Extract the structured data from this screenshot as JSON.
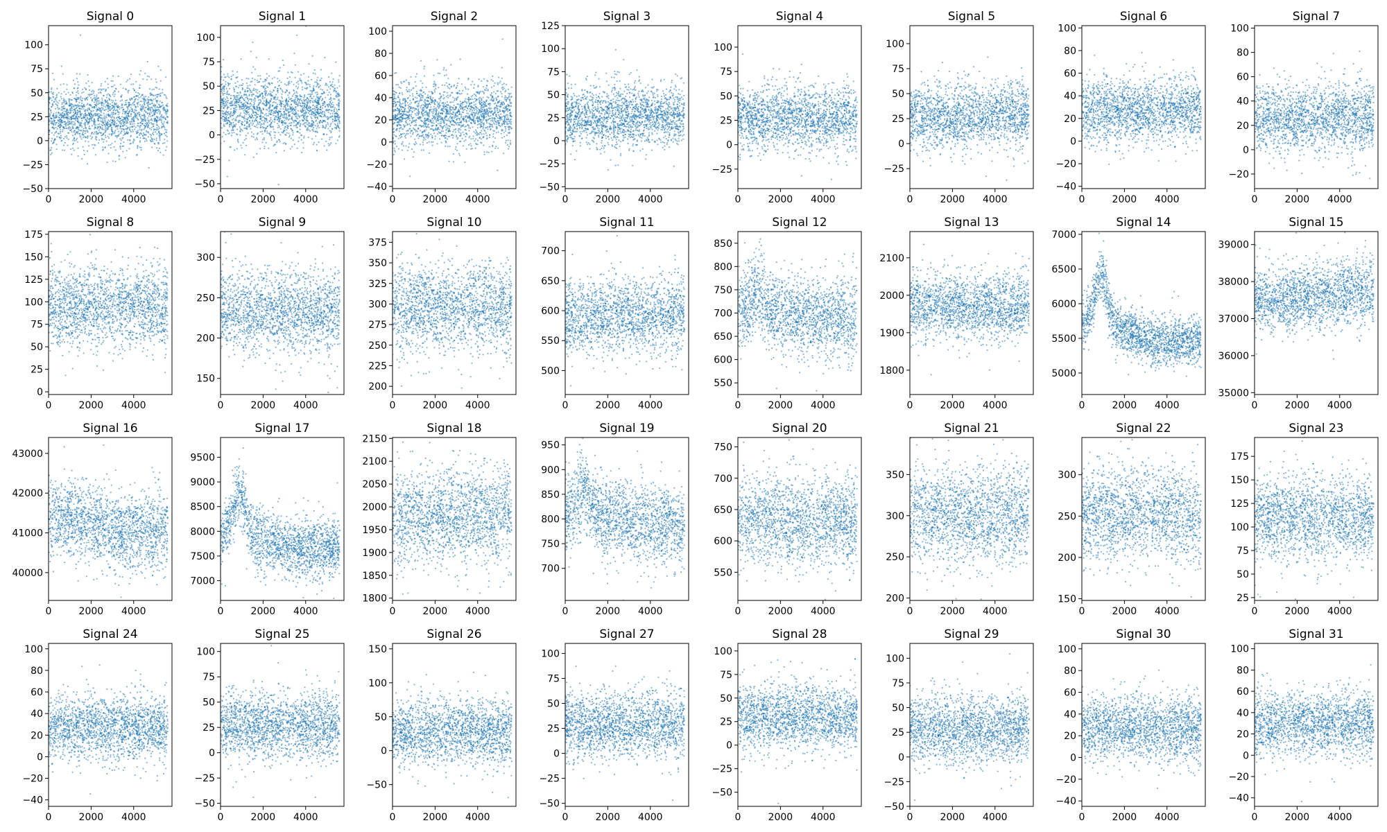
{
  "figure": {
    "point_color": "#1f77b4",
    "n_rows": 4,
    "n_cols": 8
  },
  "chart_data": [
    {
      "type": "scatter",
      "title": "Signal 0",
      "xlim": [
        0,
        5800
      ],
      "ylim": [
        -50,
        120
      ],
      "x_ticks": [
        0,
        2000,
        4000
      ],
      "y_ticks": [
        -50,
        -25,
        0,
        25,
        50,
        75,
        100
      ],
      "profile": {
        "base": 25,
        "spread": 16,
        "drift": 0,
        "peak_x": 0,
        "peak_height": 0,
        "peak_width": 1,
        "decay_depth": 0,
        "rebound": 0,
        "wave": 0
      }
    },
    {
      "type": "scatter",
      "title": "Signal 1",
      "xlim": [
        0,
        5800
      ],
      "ylim": [
        -55,
        112
      ],
      "x_ticks": [
        0,
        2000,
        4000
      ],
      "y_ticks": [
        -50,
        -25,
        0,
        25,
        50,
        75,
        100
      ],
      "profile": {
        "base": 27,
        "spread": 16,
        "drift": 0,
        "peak_x": 0,
        "peak_height": 0,
        "peak_width": 1,
        "decay_depth": 0,
        "rebound": 0,
        "wave": 0
      }
    },
    {
      "type": "scatter",
      "title": "Signal 2",
      "xlim": [
        0,
        5800
      ],
      "ylim": [
        -42,
        105
      ],
      "x_ticks": [
        0,
        2000,
        4000
      ],
      "y_ticks": [
        -40,
        -20,
        0,
        20,
        40,
        60,
        80,
        100
      ],
      "profile": {
        "base": 25,
        "spread": 14,
        "drift": 0,
        "peak_x": 0,
        "peak_height": 0,
        "peak_width": 1,
        "decay_depth": 0,
        "rebound": 0,
        "wave": 0
      }
    },
    {
      "type": "scatter",
      "title": "Signal 3",
      "xlim": [
        0,
        5800
      ],
      "ylim": [
        -52,
        125
      ],
      "x_ticks": [
        0,
        2000,
        4000
      ],
      "y_ticks": [
        -50,
        -25,
        0,
        25,
        50,
        75,
        100,
        125
      ],
      "profile": {
        "base": 27,
        "spread": 16,
        "drift": 0,
        "peak_x": 0,
        "peak_height": 0,
        "peak_width": 1,
        "decay_depth": 0,
        "rebound": 0,
        "wave": 0
      }
    },
    {
      "type": "scatter",
      "title": "Signal 4",
      "xlim": [
        0,
        5800
      ],
      "ylim": [
        -45,
        122
      ],
      "x_ticks": [
        0,
        2000,
        4000
      ],
      "y_ticks": [
        -25,
        0,
        25,
        50,
        75,
        100
      ],
      "profile": {
        "base": 27,
        "spread": 16,
        "drift": 0,
        "peak_x": 0,
        "peak_height": 0,
        "peak_width": 1,
        "decay_depth": 0,
        "rebound": 0,
        "wave": 0
      }
    },
    {
      "type": "scatter",
      "title": "Signal 5",
      "xlim": [
        0,
        5800
      ],
      "ylim": [
        -45,
        118
      ],
      "x_ticks": [
        0,
        2000,
        4000
      ],
      "y_ticks": [
        -25,
        0,
        25,
        50,
        75,
        100
      ],
      "profile": {
        "base": 27,
        "spread": 16,
        "drift": 0,
        "peak_x": 0,
        "peak_height": 0,
        "peak_width": 1,
        "decay_depth": 0,
        "rebound": 0,
        "wave": 0
      }
    },
    {
      "type": "scatter",
      "title": "Signal 6",
      "xlim": [
        0,
        5800
      ],
      "ylim": [
        -42,
        102
      ],
      "x_ticks": [
        0,
        2000,
        4000
      ],
      "y_ticks": [
        -40,
        -20,
        0,
        20,
        40,
        60,
        80,
        100
      ],
      "profile": {
        "base": 27,
        "spread": 14,
        "drift": 0,
        "peak_x": 0,
        "peak_height": 0,
        "peak_width": 1,
        "decay_depth": 0,
        "rebound": 0,
        "wave": 0
      }
    },
    {
      "type": "scatter",
      "title": "Signal 7",
      "xlim": [
        0,
        5800
      ],
      "ylim": [
        -32,
        102
      ],
      "x_ticks": [
        0,
        2000,
        4000
      ],
      "y_ticks": [
        -20,
        0,
        20,
        40,
        60,
        80,
        100
      ],
      "profile": {
        "base": 27,
        "spread": 14,
        "drift": 0,
        "peak_x": 0,
        "peak_height": 0,
        "peak_width": 1,
        "decay_depth": 0,
        "rebound": 0,
        "wave": 0
      }
    },
    {
      "type": "scatter",
      "title": "Signal 8",
      "xlim": [
        0,
        5800
      ],
      "ylim": [
        -3,
        178
      ],
      "x_ticks": [
        0,
        2000,
        4000
      ],
      "y_ticks": [
        0,
        25,
        50,
        75,
        100,
        125,
        150,
        175
      ],
      "profile": {
        "base": 94,
        "spread": 22,
        "drift": 0,
        "peak_x": 0,
        "peak_height": 0,
        "peak_width": 1,
        "decay_depth": 0,
        "rebound": 0,
        "wave": 0
      }
    },
    {
      "type": "scatter",
      "title": "Signal 9",
      "xlim": [
        0,
        5800
      ],
      "ylim": [
        130,
        332
      ],
      "x_ticks": [
        0,
        2000,
        4000
      ],
      "y_ticks": [
        150,
        200,
        250,
        300
      ],
      "profile": {
        "base": 232,
        "spread": 25,
        "drift": 0,
        "peak_x": 0,
        "peak_height": 0,
        "peak_width": 1,
        "decay_depth": 0,
        "rebound": 0,
        "wave": 0
      }
    },
    {
      "type": "scatter",
      "title": "Signal 10",
      "xlim": [
        0,
        5800
      ],
      "ylim": [
        190,
        388
      ],
      "x_ticks": [
        0,
        2000,
        4000
      ],
      "y_ticks": [
        200,
        225,
        250,
        275,
        300,
        325,
        350,
        375
      ],
      "profile": {
        "base": 295,
        "spread": 25,
        "drift": 0,
        "peak_x": 0,
        "peak_height": 0,
        "peak_width": 1,
        "decay_depth": 0,
        "rebound": 0,
        "wave": 0
      }
    },
    {
      "type": "scatter",
      "title": "Signal 11",
      "xlim": [
        0,
        5800
      ],
      "ylim": [
        460,
        732
      ],
      "x_ticks": [
        0,
        2000,
        4000
      ],
      "y_ticks": [
        500,
        550,
        600,
        650,
        700
      ],
      "profile": {
        "base": 588,
        "spread": 30,
        "drift": 8,
        "peak_x": 0,
        "peak_height": 0,
        "peak_width": 1,
        "decay_depth": 0,
        "rebound": 0,
        "wave": 0
      }
    },
    {
      "type": "scatter",
      "title": "Signal 12",
      "xlim": [
        0,
        5800
      ],
      "ylim": [
        525,
        875
      ],
      "x_ticks": [
        0,
        2000,
        4000
      ],
      "y_ticks": [
        550,
        600,
        650,
        700,
        750,
        800,
        850
      ],
      "profile": {
        "base": 705,
        "spread": 42,
        "drift": 0,
        "peak_x": 900,
        "peak_height": 40,
        "peak_width": 400,
        "decay_depth": 15,
        "rebound": 0,
        "wave": 0
      }
    },
    {
      "type": "scatter",
      "title": "Signal 13",
      "xlim": [
        0,
        5800
      ],
      "ylim": [
        1735,
        2170
      ],
      "x_ticks": [
        0,
        2000,
        4000
      ],
      "y_ticks": [
        1800,
        1900,
        2000,
        2100
      ],
      "profile": {
        "base": 1972,
        "spread": 42,
        "drift": 25,
        "peak_x": 900,
        "peak_height": 0,
        "peak_width": 1,
        "decay_depth": 25,
        "rebound": 0,
        "wave": 0
      }
    },
    {
      "type": "scatter",
      "title": "Signal 14",
      "xlim": [
        0,
        5800
      ],
      "ylim": [
        4690,
        7040
      ],
      "x_ticks": [
        0,
        2000,
        4000
      ],
      "y_ticks": [
        5000,
        5500,
        6000,
        6500,
        7000
      ],
      "profile": {
        "base": 5740,
        "spread": 170,
        "drift": 0,
        "peak_x": 900,
        "peak_height": 700,
        "peak_width": 380,
        "decay_depth": 300,
        "rebound": 60,
        "wave": 0
      }
    },
    {
      "type": "scatter",
      "title": "Signal 15",
      "xlim": [
        0,
        5800
      ],
      "ylim": [
        34950,
        39350
      ],
      "x_ticks": [
        0,
        2000,
        4000
      ],
      "y_ticks": [
        35000,
        36000,
        37000,
        38000,
        39000
      ],
      "profile": {
        "base": 37470,
        "spread": 420,
        "drift": 300,
        "peak_x": 0,
        "peak_height": 0,
        "peak_width": 1,
        "decay_depth": 0,
        "rebound": 0,
        "wave": 0
      }
    },
    {
      "type": "scatter",
      "title": "Signal 16",
      "xlim": [
        0,
        5800
      ],
      "ylim": [
        39300,
        43400
      ],
      "x_ticks": [
        0,
        2000,
        4000
      ],
      "y_ticks": [
        40000,
        41000,
        42000,
        43000
      ],
      "profile": {
        "base": 41350,
        "spread": 480,
        "drift": 250,
        "peak_x": 900,
        "peak_height": 0,
        "peak_width": 1,
        "decay_depth": 500,
        "rebound": 0,
        "wave": 0
      }
    },
    {
      "type": "scatter",
      "title": "Signal 17",
      "xlim": [
        0,
        5800
      ],
      "ylim": [
        6600,
        9900
      ],
      "x_ticks": [
        0,
        2000,
        4000
      ],
      "y_ticks": [
        7000,
        7500,
        8000,
        8500,
        9000,
        9500
      ],
      "profile": {
        "base": 7950,
        "spread": 300,
        "drift": 0,
        "peak_x": 900,
        "peak_height": 800,
        "peak_width": 380,
        "decay_depth": 300,
        "rebound": 60,
        "wave": 0
      }
    },
    {
      "type": "scatter",
      "title": "Signal 18",
      "xlim": [
        0,
        5800
      ],
      "ylim": [
        1795,
        2152
      ],
      "x_ticks": [
        0,
        2000,
        4000
      ],
      "y_ticks": [
        1800,
        1850,
        1900,
        1950,
        2000,
        2050,
        2100,
        2150
      ],
      "profile": {
        "base": 1975,
        "spread": 50,
        "drift": 15,
        "peak_x": 0,
        "peak_height": 0,
        "peak_width": 1,
        "decay_depth": 0,
        "rebound": 0,
        "wave": 0
      }
    },
    {
      "type": "scatter",
      "title": "Signal 19",
      "xlim": [
        0,
        5800
      ],
      "ylim": [
        635,
        965
      ],
      "x_ticks": [
        0,
        2000,
        4000
      ],
      "y_ticks": [
        700,
        750,
        800,
        850,
        900,
        950
      ],
      "profile": {
        "base": 810,
        "spread": 40,
        "drift": 0,
        "peak_x": 900,
        "peak_height": 50,
        "peak_width": 400,
        "decay_depth": 20,
        "rebound": 0,
        "wave": 0
      }
    },
    {
      "type": "scatter",
      "title": "Signal 20",
      "xlim": [
        0,
        5800
      ],
      "ylim": [
        505,
        765
      ],
      "x_ticks": [
        0,
        2000,
        4000
      ],
      "y_ticks": [
        550,
        600,
        650,
        700,
        750
      ],
      "profile": {
        "base": 632,
        "spread": 36,
        "drift": 12,
        "peak_x": 900,
        "peak_height": 0,
        "peak_width": 1,
        "decay_depth": 10,
        "rebound": 0,
        "wave": 0
      }
    },
    {
      "type": "scatter",
      "title": "Signal 21",
      "xlim": [
        0,
        5800
      ],
      "ylim": [
        197,
        395
      ],
      "x_ticks": [
        0,
        2000,
        4000
      ],
      "y_ticks": [
        200,
        250,
        300,
        350
      ],
      "profile": {
        "base": 300,
        "spread": 30,
        "drift": 0,
        "peak_x": 0,
        "peak_height": 0,
        "peak_width": 1,
        "decay_depth": 0,
        "rebound": 0,
        "wave": 0
      }
    },
    {
      "type": "scatter",
      "title": "Signal 22",
      "xlim": [
        0,
        5800
      ],
      "ylim": [
        148,
        345
      ],
      "x_ticks": [
        0,
        2000,
        4000
      ],
      "y_ticks": [
        150,
        200,
        250,
        300
      ],
      "profile": {
        "base": 252,
        "spread": 28,
        "drift": 0,
        "peak_x": 0,
        "peak_height": 0,
        "peak_width": 1,
        "decay_depth": 0,
        "rebound": 0,
        "wave": 0
      }
    },
    {
      "type": "scatter",
      "title": "Signal 23",
      "xlim": [
        0,
        5800
      ],
      "ylim": [
        22,
        195
      ],
      "x_ticks": [
        0,
        2000,
        4000
      ],
      "y_ticks": [
        25,
        50,
        75,
        100,
        125,
        150,
        175
      ],
      "profile": {
        "base": 110,
        "spread": 22,
        "drift": 0,
        "peak_x": 0,
        "peak_height": 0,
        "peak_width": 1,
        "decay_depth": 0,
        "rebound": 0,
        "wave": 0
      }
    },
    {
      "type": "scatter",
      "title": "Signal 24",
      "xlim": [
        0,
        5800
      ],
      "ylim": [
        -46,
        105
      ],
      "x_ticks": [
        0,
        2000,
        4000
      ],
      "y_ticks": [
        -40,
        -20,
        0,
        20,
        40,
        60,
        80,
        100
      ],
      "profile": {
        "base": 27,
        "spread": 15,
        "drift": 0,
        "peak_x": 0,
        "peak_height": 0,
        "peak_width": 1,
        "decay_depth": 0,
        "rebound": 0,
        "wave": 0
      }
    },
    {
      "type": "scatter",
      "title": "Signal 25",
      "xlim": [
        0,
        5800
      ],
      "ylim": [
        -53,
        108
      ],
      "x_ticks": [
        0,
        2000,
        4000
      ],
      "y_ticks": [
        -50,
        -25,
        0,
        25,
        50,
        75,
        100
      ],
      "profile": {
        "base": 27,
        "spread": 16,
        "drift": 0,
        "peak_x": 0,
        "peak_height": 0,
        "peak_width": 1,
        "decay_depth": 0,
        "rebound": 0,
        "wave": 0
      }
    },
    {
      "type": "scatter",
      "title": "Signal 26",
      "xlim": [
        0,
        5800
      ],
      "ylim": [
        -82,
        158
      ],
      "x_ticks": [
        0,
        2000,
        4000
      ],
      "y_ticks": [
        -50,
        0,
        50,
        100,
        150
      ],
      "profile": {
        "base": 28,
        "spread": 24,
        "drift": 0,
        "peak_x": 0,
        "peak_height": 0,
        "peak_width": 1,
        "decay_depth": 0,
        "rebound": 0,
        "wave": 0
      }
    },
    {
      "type": "scatter",
      "title": "Signal 27",
      "xlim": [
        0,
        5800
      ],
      "ylim": [
        -53,
        110
      ],
      "x_ticks": [
        0,
        2000,
        4000
      ],
      "y_ticks": [
        -50,
        -25,
        0,
        25,
        50,
        75,
        100
      ],
      "profile": {
        "base": 28,
        "spread": 16,
        "drift": 0,
        "peak_x": 0,
        "peak_height": 0,
        "peak_width": 1,
        "decay_depth": 0,
        "rebound": 0,
        "wave": 0
      }
    },
    {
      "type": "scatter",
      "title": "Signal 28",
      "xlim": [
        0,
        5800
      ],
      "ylim": [
        -65,
        108
      ],
      "x_ticks": [
        0,
        2000,
        4000
      ],
      "y_ticks": [
        -50,
        -25,
        0,
        25,
        50,
        75,
        100
      ],
      "profile": {
        "base": 30,
        "spread": 17,
        "drift": 0,
        "peak_x": 0,
        "peak_height": 0,
        "peak_width": 1,
        "decay_depth": 0,
        "rebound": 0,
        "wave": 0
      }
    },
    {
      "type": "scatter",
      "title": "Signal 29",
      "xlim": [
        0,
        5800
      ],
      "ylim": [
        -50,
        115
      ],
      "x_ticks": [
        0,
        2000,
        4000
      ],
      "y_ticks": [
        -50,
        -25,
        0,
        25,
        50,
        75,
        100
      ],
      "profile": {
        "base": 28,
        "spread": 17,
        "drift": 0,
        "peak_x": 0,
        "peak_height": 0,
        "peak_width": 1,
        "decay_depth": 0,
        "rebound": 0,
        "wave": 0
      }
    },
    {
      "type": "scatter",
      "title": "Signal 30",
      "xlim": [
        0,
        5800
      ],
      "ylim": [
        -45,
        105
      ],
      "x_ticks": [
        0,
        2000,
        4000
      ],
      "y_ticks": [
        -40,
        -20,
        0,
        20,
        40,
        60,
        80,
        100
      ],
      "profile": {
        "base": 27,
        "spread": 15,
        "drift": 0,
        "peak_x": 0,
        "peak_height": 0,
        "peak_width": 1,
        "decay_depth": 0,
        "rebound": 0,
        "wave": 0
      }
    },
    {
      "type": "scatter",
      "title": "Signal 31",
      "xlim": [
        0,
        5800
      ],
      "ylim": [
        -48,
        105
      ],
      "x_ticks": [
        0,
        2000,
        4000
      ],
      "y_ticks": [
        -40,
        -20,
        0,
        20,
        40,
        60,
        80,
        100
      ],
      "profile": {
        "base": 30,
        "spread": 15,
        "drift": 0,
        "peak_x": 0,
        "peak_height": 0,
        "peak_width": 1,
        "decay_depth": 0,
        "rebound": 0,
        "wave": 0
      }
    }
  ]
}
